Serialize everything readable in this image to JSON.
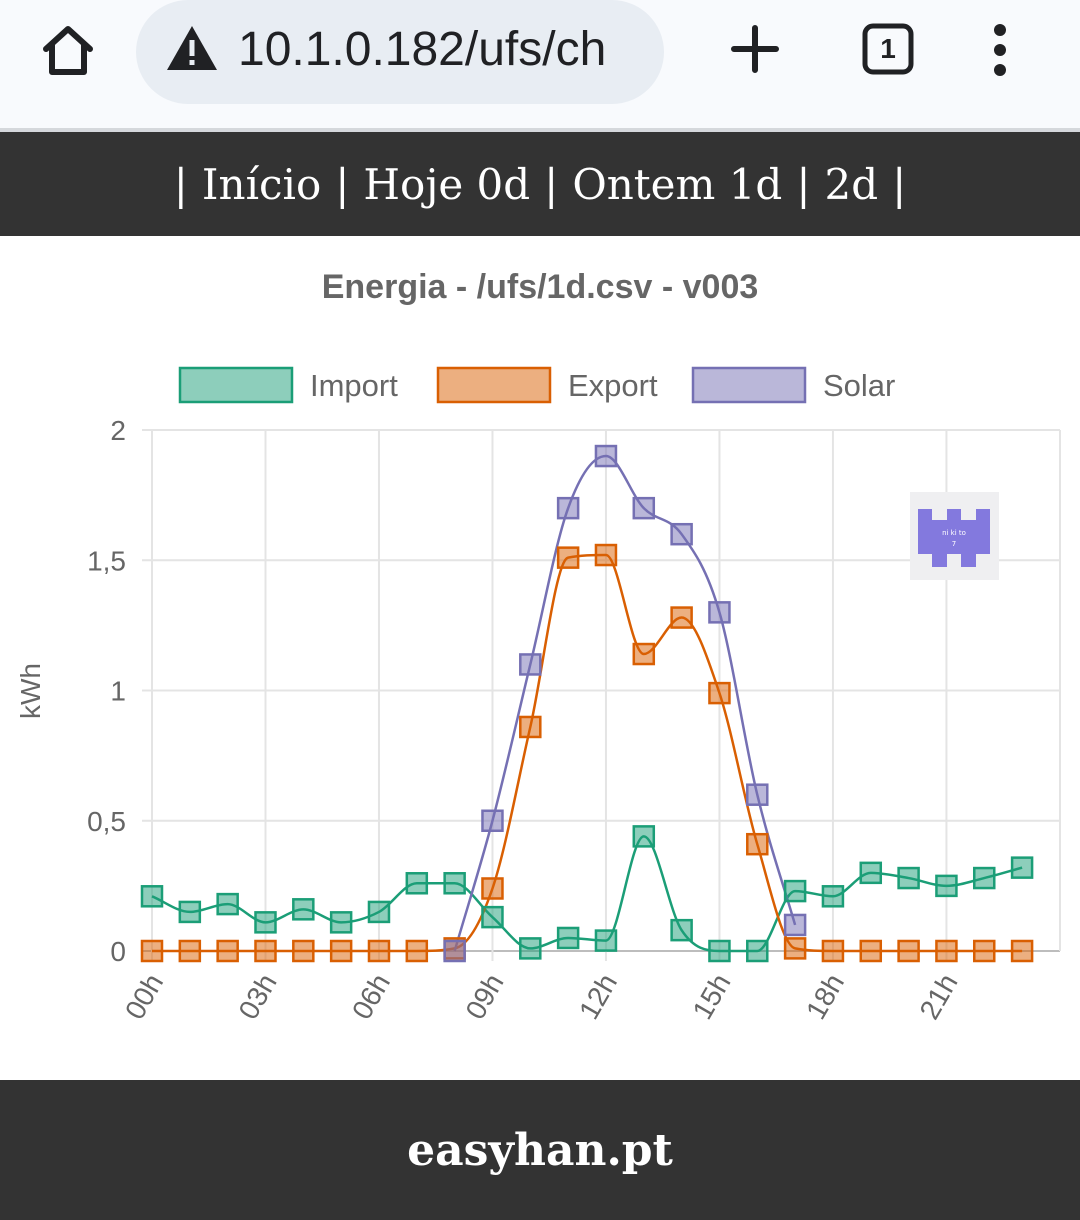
{
  "browser": {
    "url": "10.1.0.182/ufs/ch",
    "tab_count": "1",
    "icons": [
      "home-icon",
      "warning-icon",
      "plus-icon",
      "tab-switcher-icon",
      "more-vert-icon"
    ]
  },
  "nav": {
    "items": [
      "Início",
      "Hoje 0d",
      "Ontem 1d",
      "2d"
    ],
    "separator": "|"
  },
  "footer": {
    "text": "easyhan.pt"
  },
  "chart_data": {
    "type": "line",
    "title": "Energia - /ufs/1d.csv - v003",
    "ylabel": "kWh",
    "xlabel": "",
    "ylim": [
      0,
      2
    ],
    "yticks": [
      "0",
      "0,5",
      "1",
      "1,5",
      "2"
    ],
    "x": [
      "00h",
      "01h",
      "02h",
      "03h",
      "04h",
      "05h",
      "06h",
      "07h",
      "08h",
      "09h",
      "10h",
      "11h",
      "12h",
      "13h",
      "14h",
      "15h",
      "16h",
      "17h",
      "18h",
      "19h",
      "20h",
      "21h",
      "22h",
      "23h"
    ],
    "xtick_labels_shown": [
      "00h",
      "03h",
      "06h",
      "09h",
      "12h",
      "15h",
      "18h",
      "21h"
    ],
    "legend_position": "top",
    "grid": true,
    "curve": "smooth",
    "marker": "square",
    "series": [
      {
        "name": "Import",
        "color": "#1b9e77",
        "fill": "rgba(27,158,119,0.5)",
        "values": [
          0.21,
          0.15,
          0.18,
          0.11,
          0.16,
          0.11,
          0.15,
          0.26,
          0.26,
          0.13,
          0.01,
          0.05,
          0.04,
          0.44,
          0.08,
          0.0,
          0.0,
          0.23,
          0.21,
          0.3,
          0.28,
          0.25,
          0.28,
          0.32
        ]
      },
      {
        "name": "Export",
        "color": "#d95f02",
        "fill": "rgba(217,95,2,0.5)",
        "values": [
          0,
          0,
          0,
          0,
          0,
          0,
          0,
          0,
          0.01,
          0.24,
          0.86,
          1.51,
          1.52,
          1.14,
          1.28,
          0.99,
          0.41,
          0.01,
          0,
          0,
          0,
          0,
          0,
          0
        ]
      },
      {
        "name": "Solar",
        "color": "#7570b3",
        "fill": "rgba(117,112,179,0.5)",
        "values": [
          null,
          null,
          null,
          null,
          null,
          null,
          null,
          null,
          0.0,
          0.5,
          1.1,
          1.7,
          1.9,
          1.7,
          1.6,
          1.3,
          0.6,
          0.1,
          null,
          null,
          null,
          null,
          null,
          null
        ]
      }
    ]
  },
  "badge": {
    "text_line1": "ni ki to",
    "text_line2": "7",
    "color": "#8379de"
  }
}
